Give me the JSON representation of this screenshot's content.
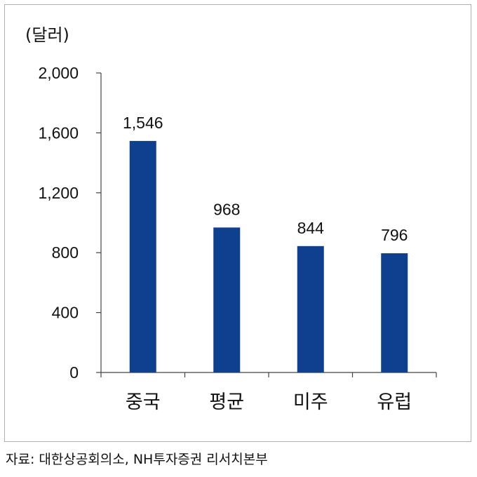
{
  "chart_data": {
    "type": "bar",
    "unit_label": "(달러)",
    "categories": [
      "중국",
      "평균",
      "미주",
      "유럽"
    ],
    "values": [
      1546,
      968,
      844,
      796
    ],
    "data_labels": [
      "1,546",
      "968",
      "844",
      "796"
    ],
    "ylim": [
      0,
      2000
    ],
    "yticks": [
      0,
      400,
      800,
      1200,
      1600,
      2000
    ],
    "ytick_labels": [
      "0",
      "400",
      "800",
      "1,200",
      "1,600",
      "2,000"
    ],
    "bar_color": "#0f3f8f",
    "grid": false,
    "legend": "none"
  },
  "source": "자료: 대한상공회의소, NH투자증권 리서치본부"
}
